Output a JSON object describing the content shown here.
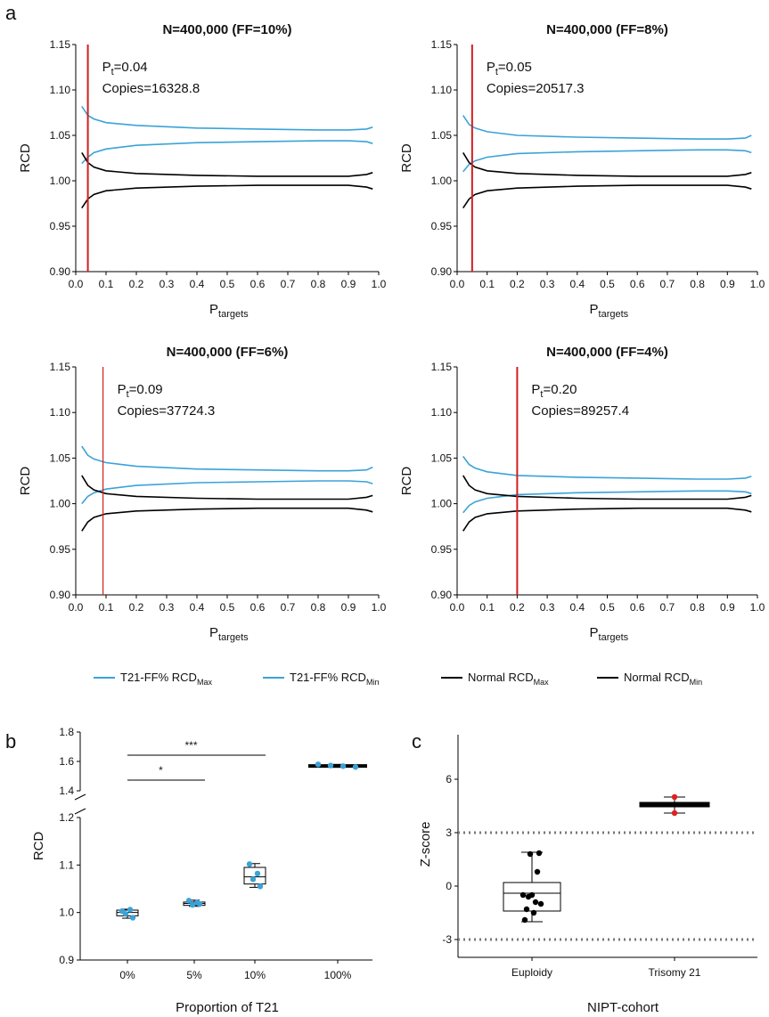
{
  "panel_letters": [
    "a",
    "b",
    "c"
  ],
  "legend": [
    {
      "label": "T21-FF% RCD",
      "sub": "Max",
      "color": "#3aa3d8"
    },
    {
      "label": "T21-FF% RCD",
      "sub": "Min",
      "color": "#3aa3d8"
    },
    {
      "label": "Normal RCD",
      "sub": "Max",
      "color": "#000000"
    },
    {
      "label": "Normal RCD",
      "sub": "Min",
      "color": "#000000"
    }
  ],
  "colors": {
    "t21": "#3aa3d8",
    "normal": "#000000",
    "cutoff": "#d11f1f",
    "trisomy_point": "#e02020"
  },
  "chart_data": [
    {
      "type": "line",
      "panel": "a",
      "title": "N=400,000 (FF=10%)",
      "xlabel": "P",
      "xlabel_sub": "targets",
      "ylabel": "RCD",
      "xlim": [
        0,
        1.0
      ],
      "ylim": [
        0.9,
        1.15
      ],
      "xticks": [
        "0.0",
        "0.1",
        "0.2",
        "0.3",
        "0.4",
        "0.5",
        "0.6",
        "0.7",
        "0.8",
        "0.9",
        "1.0"
      ],
      "yticks": [
        "0.90",
        "0.95",
        "1.00",
        "1.05",
        "1.10",
        "1.15"
      ],
      "annotation": {
        "pt_label": "P",
        "pt_sub": "t",
        "pt_value": "=0.04",
        "copies": "Copies=16328.8"
      },
      "cutoff_x": 0.04,
      "series": [
        {
          "name": "T21-FF% RCD Max",
          "x": [
            0.02,
            0.04,
            0.06,
            0.1,
            0.2,
            0.4,
            0.6,
            0.8,
            0.9,
            0.96,
            0.98
          ],
          "y": [
            1.082,
            1.072,
            1.068,
            1.064,
            1.061,
            1.058,
            1.057,
            1.056,
            1.056,
            1.057,
            1.059
          ]
        },
        {
          "name": "T21-FF% RCD Min",
          "x": [
            0.02,
            0.04,
            0.06,
            0.1,
            0.2,
            0.4,
            0.6,
            0.8,
            0.9,
            0.96,
            0.98
          ],
          "y": [
            1.019,
            1.026,
            1.031,
            1.035,
            1.039,
            1.042,
            1.043,
            1.044,
            1.044,
            1.043,
            1.041
          ]
        },
        {
          "name": "Normal RCD Max",
          "x": [
            0.02,
            0.04,
            0.06,
            0.1,
            0.2,
            0.4,
            0.6,
            0.8,
            0.9,
            0.96,
            0.98
          ],
          "y": [
            1.031,
            1.02,
            1.015,
            1.011,
            1.008,
            1.006,
            1.005,
            1.005,
            1.005,
            1.007,
            1.009
          ]
        },
        {
          "name": "Normal RCD Min",
          "x": [
            0.02,
            0.04,
            0.06,
            0.1,
            0.2,
            0.4,
            0.6,
            0.8,
            0.9,
            0.96,
            0.98
          ],
          "y": [
            0.97,
            0.98,
            0.985,
            0.989,
            0.992,
            0.994,
            0.995,
            0.995,
            0.995,
            0.993,
            0.991
          ]
        }
      ]
    },
    {
      "type": "line",
      "panel": "a",
      "title": "N=400,000 (FF=8%)",
      "xlabel": "P",
      "xlabel_sub": "targets",
      "ylabel": "RCD",
      "xlim": [
        0,
        1.0
      ],
      "ylim": [
        0.9,
        1.15
      ],
      "xticks": [
        "0.0",
        "0.1",
        "0.2",
        "0.3",
        "0.4",
        "0.5",
        "0.6",
        "0.7",
        "0.8",
        "0.9",
        "1.0"
      ],
      "yticks": [
        "0.90",
        "0.95",
        "1.00",
        "1.05",
        "1.10",
        "1.15"
      ],
      "annotation": {
        "pt_label": "P",
        "pt_sub": "t",
        "pt_value": "=0.05",
        "copies": "Copies=20517.3"
      },
      "cutoff_x": 0.05,
      "series": [
        {
          "name": "T21-FF% RCD Max",
          "x": [
            0.02,
            0.04,
            0.06,
            0.1,
            0.2,
            0.4,
            0.6,
            0.8,
            0.9,
            0.96,
            0.98
          ],
          "y": [
            1.072,
            1.062,
            1.058,
            1.054,
            1.05,
            1.048,
            1.047,
            1.046,
            1.046,
            1.047,
            1.05
          ]
        },
        {
          "name": "T21-FF% RCD Min",
          "x": [
            0.02,
            0.04,
            0.06,
            0.1,
            0.2,
            0.4,
            0.6,
            0.8,
            0.9,
            0.96,
            0.98
          ],
          "y": [
            1.01,
            1.018,
            1.022,
            1.026,
            1.03,
            1.032,
            1.033,
            1.034,
            1.034,
            1.033,
            1.031
          ]
        },
        {
          "name": "Normal RCD Max",
          "x": [
            0.02,
            0.04,
            0.06,
            0.1,
            0.2,
            0.4,
            0.6,
            0.8,
            0.9,
            0.96,
            0.98
          ],
          "y": [
            1.031,
            1.02,
            1.015,
            1.011,
            1.008,
            1.006,
            1.005,
            1.005,
            1.005,
            1.007,
            1.009
          ]
        },
        {
          "name": "Normal RCD Min",
          "x": [
            0.02,
            0.04,
            0.06,
            0.1,
            0.2,
            0.4,
            0.6,
            0.8,
            0.9,
            0.96,
            0.98
          ],
          "y": [
            0.97,
            0.98,
            0.985,
            0.989,
            0.992,
            0.994,
            0.995,
            0.995,
            0.995,
            0.993,
            0.991
          ]
        }
      ]
    },
    {
      "type": "line",
      "panel": "a",
      "title": "N=400,000 (FF=6%)",
      "xlabel": "P",
      "xlabel_sub": "targets",
      "ylabel": "RCD",
      "xlim": [
        0,
        1.0
      ],
      "ylim": [
        0.9,
        1.15
      ],
      "xticks": [
        "0.0",
        "0.1",
        "0.2",
        "0.3",
        "0.4",
        "0.5",
        "0.6",
        "0.7",
        "0.8",
        "0.9",
        "1.0"
      ],
      "yticks": [
        "0.90",
        "0.95",
        "1.00",
        "1.05",
        "1.10",
        "1.15"
      ],
      "annotation": {
        "pt_label": "P",
        "pt_sub": "t",
        "pt_value": "=0.09",
        "copies": "Copies=37724.3"
      },
      "cutoff_x": 0.09,
      "series": [
        {
          "name": "T21-FF% RCD Max",
          "x": [
            0.02,
            0.04,
            0.06,
            0.1,
            0.2,
            0.4,
            0.6,
            0.8,
            0.9,
            0.96,
            0.98
          ],
          "y": [
            1.063,
            1.053,
            1.049,
            1.045,
            1.041,
            1.038,
            1.037,
            1.036,
            1.036,
            1.037,
            1.04
          ]
        },
        {
          "name": "T21-FF% RCD Min",
          "x": [
            0.02,
            0.04,
            0.06,
            0.1,
            0.2,
            0.4,
            0.6,
            0.8,
            0.9,
            0.96,
            0.98
          ],
          "y": [
            1.0,
            1.008,
            1.012,
            1.016,
            1.02,
            1.023,
            1.024,
            1.025,
            1.025,
            1.024,
            1.022
          ]
        },
        {
          "name": "Normal RCD Max",
          "x": [
            0.02,
            0.04,
            0.06,
            0.1,
            0.2,
            0.4,
            0.6,
            0.8,
            0.9,
            0.96,
            0.98
          ],
          "y": [
            1.031,
            1.02,
            1.015,
            1.011,
            1.008,
            1.006,
            1.005,
            1.005,
            1.005,
            1.007,
            1.009
          ]
        },
        {
          "name": "Normal RCD Min",
          "x": [
            0.02,
            0.04,
            0.06,
            0.1,
            0.2,
            0.4,
            0.6,
            0.8,
            0.9,
            0.96,
            0.98
          ],
          "y": [
            0.97,
            0.98,
            0.985,
            0.989,
            0.992,
            0.994,
            0.995,
            0.995,
            0.995,
            0.993,
            0.991
          ]
        }
      ]
    },
    {
      "type": "line",
      "panel": "a",
      "title": "N=400,000 (FF=4%)",
      "xlabel": "P",
      "xlabel_sub": "targets",
      "ylabel": "RCD",
      "xlim": [
        0,
        1.0
      ],
      "ylim": [
        0.9,
        1.15
      ],
      "xticks": [
        "0.0",
        "0.1",
        "0.2",
        "0.3",
        "0.4",
        "0.5",
        "0.6",
        "0.7",
        "0.8",
        "0.9",
        "1.0"
      ],
      "yticks": [
        "0.90",
        "0.95",
        "1.00",
        "1.05",
        "1.10",
        "1.15"
      ],
      "annotation": {
        "pt_label": "P",
        "pt_sub": "t",
        "pt_value": "=0.20",
        "copies": "Copies=89257.4"
      },
      "cutoff_x": 0.2,
      "series": [
        {
          "name": "T21-FF% RCD Max",
          "x": [
            0.02,
            0.04,
            0.06,
            0.1,
            0.2,
            0.4,
            0.6,
            0.8,
            0.9,
            0.96,
            0.98
          ],
          "y": [
            1.052,
            1.043,
            1.039,
            1.035,
            1.031,
            1.029,
            1.028,
            1.027,
            1.027,
            1.028,
            1.03
          ]
        },
        {
          "name": "T21-FF% RCD Min",
          "x": [
            0.02,
            0.04,
            0.06,
            0.1,
            0.2,
            0.4,
            0.6,
            0.8,
            0.9,
            0.96,
            0.98
          ],
          "y": [
            0.99,
            0.998,
            1.002,
            1.006,
            1.01,
            1.012,
            1.013,
            1.014,
            1.014,
            1.013,
            1.011
          ]
        },
        {
          "name": "Normal RCD Max",
          "x": [
            0.02,
            0.04,
            0.06,
            0.1,
            0.2,
            0.4,
            0.6,
            0.8,
            0.9,
            0.96,
            0.98
          ],
          "y": [
            1.031,
            1.02,
            1.015,
            1.011,
            1.008,
            1.006,
            1.005,
            1.005,
            1.005,
            1.007,
            1.009
          ]
        },
        {
          "name": "Normal RCD Min",
          "x": [
            0.02,
            0.04,
            0.06,
            0.1,
            0.2,
            0.4,
            0.6,
            0.8,
            0.9,
            0.96,
            0.98
          ],
          "y": [
            0.97,
            0.98,
            0.985,
            0.989,
            0.992,
            0.994,
            0.995,
            0.995,
            0.995,
            0.993,
            0.991
          ]
        }
      ]
    },
    {
      "type": "box",
      "panel": "b",
      "xlabel": "Proportion of T21",
      "ylabel": "RCD",
      "categories": [
        "0%",
        "5%",
        "10%",
        "100%"
      ],
      "axis_break": {
        "lower": [
          0.9,
          1.2
        ],
        "upper": [
          1.4,
          1.8
        ]
      },
      "yticks_lower": [
        "0.9",
        "1.0",
        "1.1",
        "1.2"
      ],
      "yticks_upper": [
        "1.4",
        "1.6",
        "1.8"
      ],
      "boxes": [
        {
          "min": 0.988,
          "q1": 0.993,
          "median": 1.0,
          "q3": 1.005,
          "max": 1.007,
          "points": [
            1.003,
            1.006,
            0.997,
            0.989
          ]
        },
        {
          "min": 1.013,
          "q1": 1.015,
          "median": 1.019,
          "q3": 1.022,
          "max": 1.026,
          "points": [
            1.025,
            1.021,
            1.016,
            1.018
          ]
        },
        {
          "min": 1.053,
          "q1": 1.06,
          "median": 1.075,
          "q3": 1.095,
          "max": 1.103,
          "points": [
            1.102,
            1.082,
            1.07,
            1.055
          ]
        },
        {
          "min": 1.56,
          "q1": 1.565,
          "median": 1.57,
          "q3": 1.575,
          "max": 1.58,
          "points": [
            1.58,
            1.572,
            1.568,
            1.562
          ]
        }
      ],
      "significance": [
        {
          "from": "0%",
          "to": "10%",
          "label": "***"
        },
        {
          "from": "0%",
          "to": "5%",
          "label": "*"
        }
      ]
    },
    {
      "type": "box",
      "panel": "c",
      "xlabel": "NIPT-cohort",
      "ylabel": "Z-score",
      "categories": [
        "Euploidy",
        "Trisomy 21"
      ],
      "ylim": [
        -4,
        8.5
      ],
      "yticks": [
        "-3",
        "0",
        "3",
        "6"
      ],
      "threshold_lines": [
        3,
        -3
      ],
      "boxes": [
        {
          "min": -2.0,
          "q1": -1.4,
          "median": -0.4,
          "q3": 0.2,
          "max": 1.9,
          "points": [
            1.85,
            1.8,
            0.8,
            -0.5,
            -0.5,
            -0.6,
            -0.9,
            -1.0,
            -1.3,
            -1.5,
            -1.9
          ]
        },
        {
          "min": 4.1,
          "q1": 4.5,
          "median": 4.6,
          "q3": 4.65,
          "max": 5.0,
          "points": [
            5.0,
            4.1
          ]
        }
      ]
    }
  ]
}
